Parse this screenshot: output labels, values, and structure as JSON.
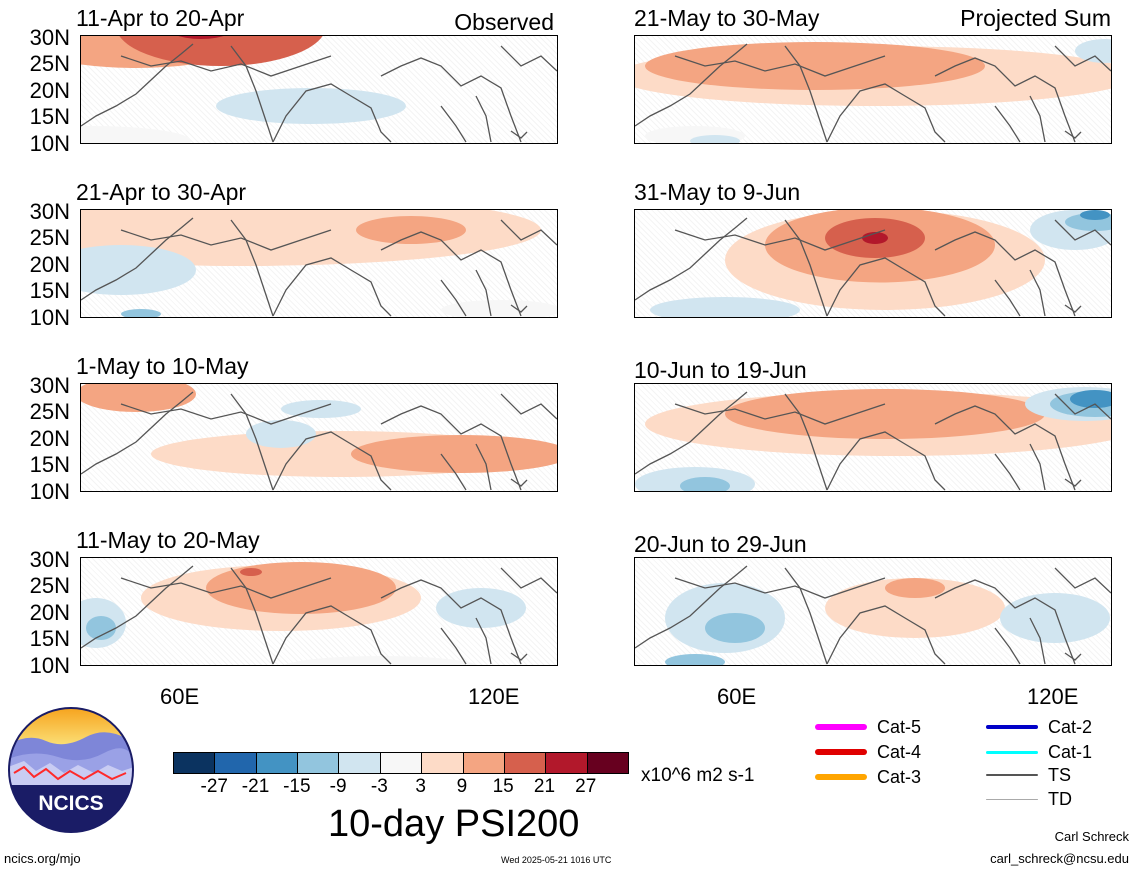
{
  "panels": [
    {
      "title": "11-Apr to 20-Apr",
      "tag": "Observed"
    },
    {
      "title": "21-Apr to 30-Apr",
      "tag": ""
    },
    {
      "title": "1-May to 10-May",
      "tag": ""
    },
    {
      "title": "11-May to 20-May",
      "tag": ""
    },
    {
      "title": "21-May to 30-May",
      "tag": "Projected Sum"
    },
    {
      "title": "31-May to 9-Jun",
      "tag": ""
    },
    {
      "title": "10-Jun to 19-Jun",
      "tag": ""
    },
    {
      "title": "20-Jun to 29-Jun",
      "tag": ""
    }
  ],
  "lat_labels": [
    "30N",
    "25N",
    "20N",
    "15N",
    "10N"
  ],
  "lon_labels": [
    "60E",
    "120E"
  ],
  "colorbar": {
    "colors": [
      "#0b3360",
      "#2166ac",
      "#4393c3",
      "#92c5de",
      "#d1e5f0",
      "#f7f7f7",
      "#fddbc7",
      "#f4a582",
      "#d6604d",
      "#b2182b",
      "#67001f"
    ],
    "ticks": [
      "-27",
      "-21",
      "-15",
      "-9",
      "-3",
      "3",
      "9",
      "15",
      "21",
      "27"
    ],
    "units": "x10^6 m2 s-1"
  },
  "main_title": "10-day PSI200",
  "legend": [
    {
      "label": "Cat-5",
      "color": "#ff00ff"
    },
    {
      "label": "Cat-4",
      "color": "#e00000"
    },
    {
      "label": "Cat-3",
      "color": "#ffa500"
    },
    {
      "label": "Cat-2",
      "color": "#0000c8"
    },
    {
      "label": "Cat-1",
      "color": "#00ffff"
    },
    {
      "label": "TS",
      "color": "#555555"
    },
    {
      "label": "TD",
      "color": "#aaaaaa"
    }
  ],
  "logo": {
    "text": "NCICS"
  },
  "footer": {
    "left": "ncics.org/mjo",
    "center": "Wed 2025-05-21 1016 UTC",
    "author": "Carl Schreck",
    "email": "carl_schreck@ncsu.edu"
  }
}
